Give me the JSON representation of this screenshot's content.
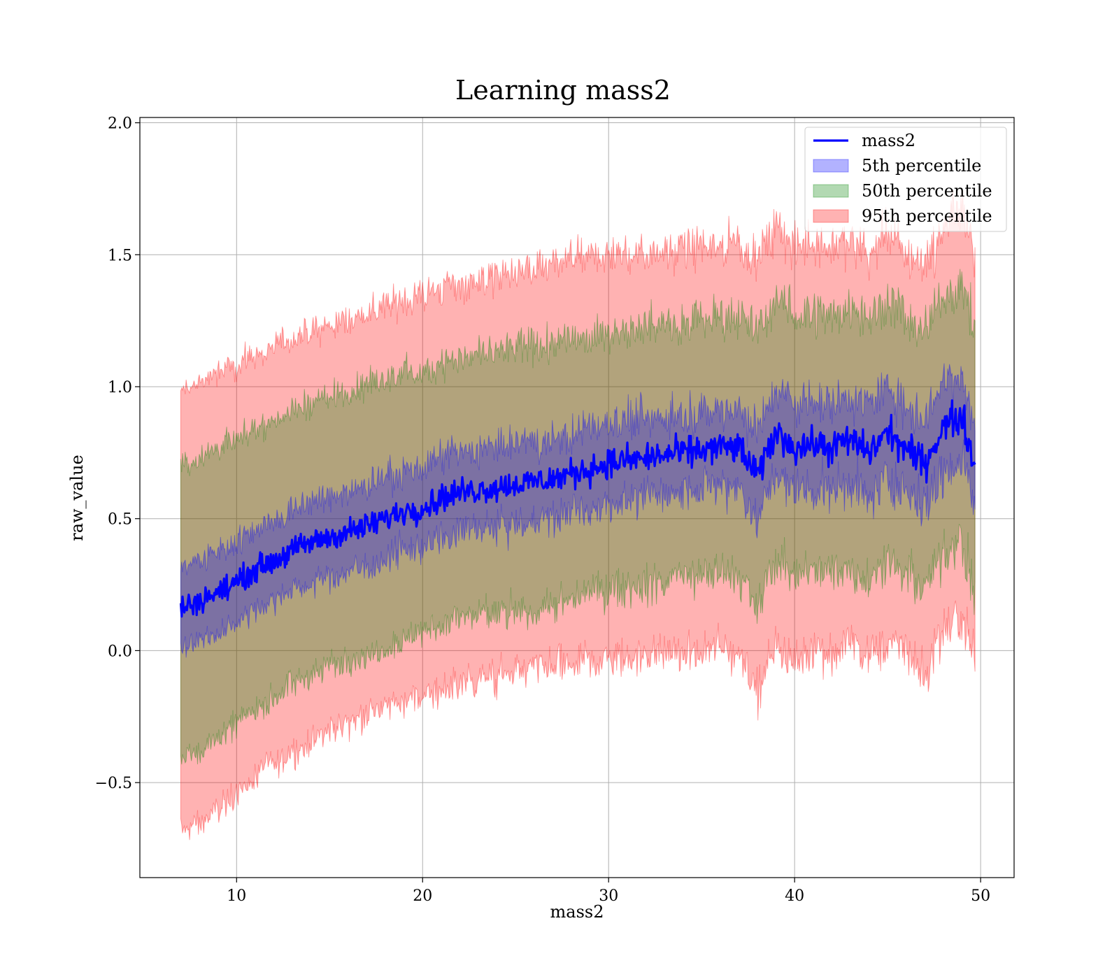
{
  "chart_data": {
    "type": "area",
    "title": "Learning mass2",
    "xlabel": "mass2",
    "ylabel": "raw_value",
    "xlim": [
      4.8,
      51.8
    ],
    "ylim": [
      -0.86,
      2.02
    ],
    "xticks": [
      10,
      20,
      30,
      40,
      50
    ],
    "xtick_labels": [
      "10",
      "20",
      "30",
      "40",
      "50"
    ],
    "yticks": [
      -0.5,
      0.0,
      0.5,
      1.0,
      1.5,
      2.0
    ],
    "ytick_labels": [
      "−0.5",
      "0.0",
      "0.5",
      "1.0",
      "1.5",
      "2.0"
    ],
    "grid": true,
    "legend_position": "upper right",
    "x_range": [
      7.0,
      49.7
    ],
    "mean_line": {
      "name": "mass2",
      "color": "#0000ff",
      "x": [
        7,
        8,
        9,
        10,
        11,
        12,
        13,
        14,
        15,
        16,
        17,
        18,
        19,
        20,
        21,
        22,
        23,
        24,
        25,
        26,
        27,
        28,
        29,
        30,
        31,
        32,
        33,
        34,
        35,
        36,
        37,
        38,
        39,
        40,
        41,
        42,
        43,
        44,
        45,
        46,
        47,
        48,
        49,
        49.7
      ],
      "y": [
        0.16,
        0.19,
        0.22,
        0.26,
        0.31,
        0.34,
        0.38,
        0.41,
        0.43,
        0.45,
        0.47,
        0.5,
        0.53,
        0.54,
        0.58,
        0.6,
        0.61,
        0.62,
        0.63,
        0.64,
        0.65,
        0.67,
        0.69,
        0.71,
        0.72,
        0.73,
        0.74,
        0.75,
        0.76,
        0.77,
        0.77,
        0.66,
        0.83,
        0.77,
        0.78,
        0.77,
        0.8,
        0.75,
        0.83,
        0.76,
        0.71,
        0.85,
        0.89,
        0.69
      ]
    },
    "bands": [
      {
        "name": "95th percentile",
        "color": "#ff0000",
        "opacity": 0.3,
        "lower": [
          -0.68,
          -0.66,
          -0.6,
          -0.54,
          -0.48,
          -0.43,
          -0.38,
          -0.34,
          -0.3,
          -0.27,
          -0.24,
          -0.21,
          -0.19,
          -0.17,
          -0.15,
          -0.13,
          -0.11,
          -0.1,
          -0.08,
          -0.07,
          -0.06,
          -0.05,
          -0.04,
          -0.03,
          -0.03,
          -0.02,
          -0.02,
          -0.01,
          -0.01,
          0.0,
          0.0,
          -0.16,
          0.04,
          -0.05,
          0.02,
          -0.01,
          0.03,
          -0.03,
          0.04,
          0.0,
          -0.1,
          0.08,
          0.12,
          -0.05
        ],
        "upper": [
          0.98,
          1.02,
          1.05,
          1.08,
          1.12,
          1.15,
          1.18,
          1.2,
          1.23,
          1.25,
          1.28,
          1.3,
          1.33,
          1.35,
          1.37,
          1.39,
          1.4,
          1.42,
          1.43,
          1.44,
          1.46,
          1.48,
          1.49,
          1.5,
          1.5,
          1.51,
          1.52,
          1.52,
          1.53,
          1.54,
          1.55,
          1.48,
          1.6,
          1.52,
          1.55,
          1.52,
          1.56,
          1.5,
          1.58,
          1.5,
          1.46,
          1.6,
          1.7,
          1.5
        ]
      },
      {
        "name": "50th percentile",
        "color": "#008000",
        "opacity": 0.3,
        "lower": [
          -0.4,
          -0.38,
          -0.33,
          -0.28,
          -0.22,
          -0.18,
          -0.13,
          -0.09,
          -0.06,
          -0.03,
          -0.01,
          0.02,
          0.05,
          0.06,
          0.1,
          0.12,
          0.13,
          0.14,
          0.15,
          0.16,
          0.17,
          0.19,
          0.21,
          0.23,
          0.24,
          0.25,
          0.26,
          0.27,
          0.28,
          0.29,
          0.29,
          0.16,
          0.35,
          0.29,
          0.3,
          0.29,
          0.32,
          0.27,
          0.35,
          0.28,
          0.23,
          0.37,
          0.41,
          0.21
        ],
        "upper": [
          0.7,
          0.73,
          0.77,
          0.8,
          0.84,
          0.87,
          0.91,
          0.94,
          0.96,
          0.98,
          1.0,
          1.02,
          1.05,
          1.06,
          1.09,
          1.11,
          1.12,
          1.13,
          1.14,
          1.15,
          1.16,
          1.18,
          1.19,
          1.21,
          1.22,
          1.23,
          1.24,
          1.25,
          1.26,
          1.27,
          1.27,
          1.2,
          1.33,
          1.27,
          1.28,
          1.27,
          1.3,
          1.25,
          1.33,
          1.26,
          1.21,
          1.35,
          1.39,
          1.2
        ]
      },
      {
        "name": "5th percentile",
        "color": "#0000ff",
        "opacity": 0.3,
        "lower": [
          0.0,
          0.04,
          0.07,
          0.11,
          0.16,
          0.19,
          0.23,
          0.26,
          0.28,
          0.3,
          0.32,
          0.35,
          0.38,
          0.39,
          0.43,
          0.45,
          0.46,
          0.47,
          0.48,
          0.49,
          0.5,
          0.52,
          0.54,
          0.56,
          0.57,
          0.58,
          0.59,
          0.6,
          0.61,
          0.62,
          0.62,
          0.49,
          0.66,
          0.6,
          0.61,
          0.6,
          0.63,
          0.58,
          0.66,
          0.59,
          0.54,
          0.68,
          0.72,
          0.53
        ],
        "upper": [
          0.32,
          0.34,
          0.37,
          0.41,
          0.46,
          0.49,
          0.53,
          0.56,
          0.58,
          0.6,
          0.62,
          0.65,
          0.68,
          0.69,
          0.73,
          0.75,
          0.76,
          0.77,
          0.78,
          0.79,
          0.8,
          0.82,
          0.84,
          0.86,
          0.87,
          0.88,
          0.89,
          0.9,
          0.91,
          0.92,
          0.92,
          0.83,
          1.0,
          0.94,
          0.95,
          0.94,
          0.97,
          0.92,
          1.0,
          0.93,
          0.88,
          1.02,
          1.06,
          0.85
        ]
      }
    ],
    "legend": [
      {
        "label": "mass2",
        "kind": "line",
        "color": "#0000ff"
      },
      {
        "label": "5th percentile",
        "kind": "patch",
        "color": "#0000ff"
      },
      {
        "label": "50th percentile",
        "kind": "patch",
        "color": "#008000"
      },
      {
        "label": "95th percentile",
        "kind": "patch",
        "color": "#ff0000"
      }
    ]
  }
}
